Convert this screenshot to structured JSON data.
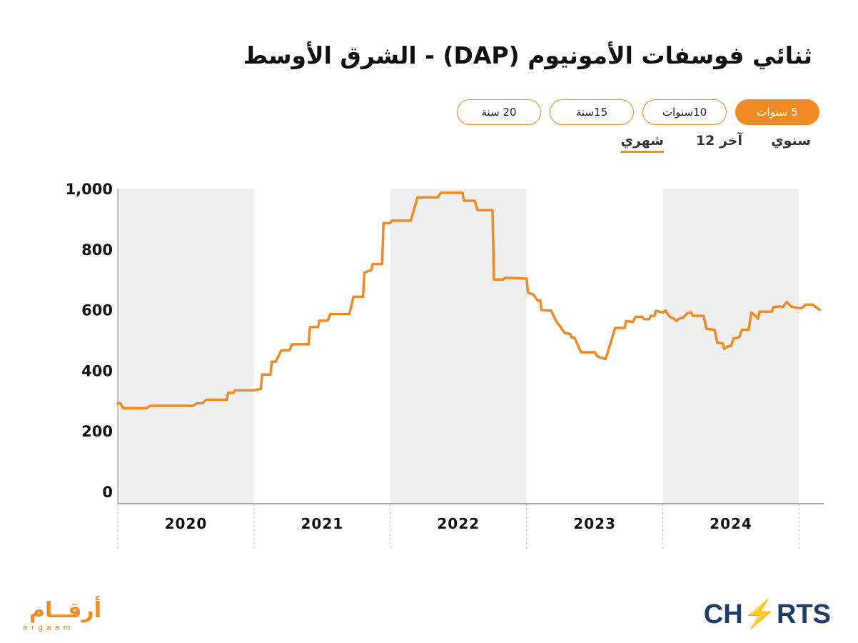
{
  "header": {
    "title": "ثنائي فوسفات الأمونيوم (DAP) - الشرق الأوسط"
  },
  "range_buttons": [
    {
      "label": "5 سنوات",
      "active": true
    },
    {
      "label": "10سنوات",
      "active": false
    },
    {
      "label": "15سنة",
      "active": false
    },
    {
      "label": "20 سنة",
      "active": false
    }
  ],
  "period_tabs": [
    {
      "label": "سنوي",
      "active": false
    },
    {
      "label": "آخر 12",
      "active": false
    },
    {
      "label": "شهري",
      "active": true
    }
  ],
  "colors": {
    "accent": "#f08a24",
    "shade": "#efeff0",
    "brand_blue": "#1f3d6b"
  },
  "chart_data": {
    "type": "line",
    "x_unit": "fractional year",
    "ylim": [
      0,
      1000
    ],
    "yticks": [
      "0",
      "200",
      "400",
      "600",
      "800",
      "1,000"
    ],
    "ytick_values": [
      0,
      200,
      400,
      600,
      800,
      1000
    ],
    "xticks": [
      "2020",
      "2021",
      "2022",
      "2023",
      "2024"
    ],
    "shaded_years": [
      "2020",
      "2022",
      "2024"
    ],
    "grid": false,
    "series": [
      {
        "values": [
          [
            2020.0,
            291
          ],
          [
            2020.02,
            291
          ],
          [
            2020.04,
            275
          ],
          [
            2020.2,
            275
          ],
          [
            2020.22,
            278
          ],
          [
            2020.24,
            283
          ],
          [
            2020.55,
            283
          ],
          [
            2020.58,
            291
          ],
          [
            2020.62,
            291
          ],
          [
            2020.65,
            303
          ],
          [
            2020.8,
            303
          ],
          [
            2020.81,
            326
          ],
          [
            2020.85,
            326
          ],
          [
            2020.86,
            334
          ],
          [
            2021.0,
            334
          ],
          [
            2021.05,
            339
          ],
          [
            2021.06,
            386
          ],
          [
            2021.12,
            386
          ],
          [
            2021.13,
            429
          ],
          [
            2021.16,
            429
          ],
          [
            2021.2,
            466
          ],
          [
            2021.26,
            466
          ],
          [
            2021.28,
            486
          ],
          [
            2021.4,
            486
          ],
          [
            2021.41,
            543
          ],
          [
            2021.47,
            543
          ],
          [
            2021.48,
            564
          ],
          [
            2021.54,
            564
          ],
          [
            2021.56,
            586
          ],
          [
            2021.7,
            586
          ],
          [
            2021.73,
            643
          ],
          [
            2021.8,
            643
          ],
          [
            2021.81,
            723
          ],
          [
            2021.86,
            731
          ],
          [
            2021.87,
            751
          ],
          [
            2021.94,
            751
          ],
          [
            2021.95,
            886
          ],
          [
            2022.0,
            886
          ],
          [
            2022.01,
            894
          ],
          [
            2022.15,
            894
          ],
          [
            2022.2,
            971
          ],
          [
            2022.35,
            971
          ],
          [
            2022.37,
            986
          ],
          [
            2022.53,
            986
          ],
          [
            2022.54,
            960
          ],
          [
            2022.62,
            960
          ],
          [
            2022.64,
            929
          ],
          [
            2022.75,
            929
          ],
          [
            2022.76,
            700
          ],
          [
            2022.83,
            700
          ],
          [
            2022.84,
            706
          ],
          [
            2023.0,
            703
          ],
          [
            2023.01,
            657
          ],
          [
            2023.05,
            650
          ],
          [
            2023.08,
            631
          ],
          [
            2023.1,
            631
          ],
          [
            2023.11,
            599
          ],
          [
            2023.18,
            597
          ],
          [
            2023.22,
            560
          ],
          [
            2023.24,
            549
          ],
          [
            2023.28,
            523
          ],
          [
            2023.32,
            520
          ],
          [
            2023.33,
            509
          ],
          [
            2023.35,
            509
          ],
          [
            2023.4,
            460
          ],
          [
            2023.5,
            460
          ],
          [
            2023.52,
            446
          ],
          [
            2023.58,
            437
          ],
          [
            2023.65,
            540
          ],
          [
            2023.72,
            540
          ],
          [
            2023.73,
            563
          ],
          [
            2023.78,
            560
          ],
          [
            2023.8,
            577
          ],
          [
            2023.85,
            577
          ],
          [
            2023.86,
            569
          ],
          [
            2023.9,
            569
          ],
          [
            2023.91,
            580
          ],
          [
            2023.94,
            580
          ],
          [
            2023.95,
            597
          ],
          [
            2024.0,
            591
          ],
          [
            2024.02,
            597
          ],
          [
            2024.05,
            577
          ],
          [
            2024.08,
            571
          ],
          [
            2024.1,
            563
          ],
          [
            2024.12,
            571
          ],
          [
            2024.15,
            574
          ],
          [
            2024.18,
            589
          ],
          [
            2024.21,
            591
          ],
          [
            2024.22,
            580
          ],
          [
            2024.3,
            580
          ],
          [
            2024.32,
            537
          ],
          [
            2024.38,
            534
          ],
          [
            2024.4,
            491
          ],
          [
            2024.44,
            489
          ],
          [
            2024.45,
            471
          ],
          [
            2024.48,
            480
          ],
          [
            2024.5,
            480
          ],
          [
            2024.52,
            506
          ],
          [
            2024.56,
            509
          ],
          [
            2024.58,
            534
          ],
          [
            2024.63,
            534
          ],
          [
            2024.65,
            591
          ],
          [
            2024.68,
            580
          ],
          [
            2024.7,
            571
          ],
          [
            2024.71,
            594
          ],
          [
            2024.74,
            594
          ],
          [
            2024.8,
            594
          ],
          [
            2024.81,
            609
          ],
          [
            2024.86,
            611
          ],
          [
            2024.88,
            609
          ],
          [
            2024.91,
            626
          ],
          [
            2024.94,
            611
          ],
          [
            2024.99,
            606
          ],
          [
            2025.02,
            606
          ],
          [
            2025.05,
            617
          ],
          [
            2025.1,
            617
          ],
          [
            2025.15,
            600
          ]
        ]
      }
    ]
  },
  "brand_left": {
    "arabic": "أرقــام",
    "latin": "argaam"
  },
  "brand_right": {
    "text_a": "CH",
    "text_b": "RTS"
  }
}
